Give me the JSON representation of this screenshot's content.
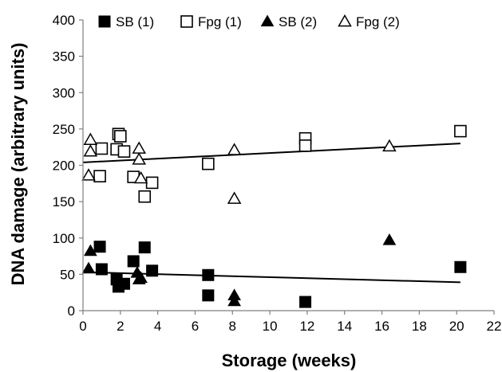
{
  "chart_data": {
    "type": "scatter",
    "title": "",
    "xlabel": "Storage (weeks)",
    "ylabel": "DNA damage (arbitrary units)",
    "xlim": [
      0,
      22
    ],
    "ylim": [
      0,
      400
    ],
    "xticks": [
      0,
      2,
      4,
      6,
      8,
      10,
      12,
      14,
      16,
      18,
      20,
      22
    ],
    "yticks": [
      0,
      50,
      100,
      150,
      200,
      250,
      300,
      350,
      400
    ],
    "grid": false,
    "legend_position": "top",
    "series": [
      {
        "name": "SB (1)",
        "marker": "square-filled",
        "color": "#000000",
        "points": [
          [
            0.9,
            88
          ],
          [
            1.0,
            57
          ],
          [
            1.8,
            43
          ],
          [
            1.9,
            33
          ],
          [
            2.2,
            37
          ],
          [
            2.7,
            68
          ],
          [
            3.3,
            87
          ],
          [
            3.7,
            55
          ],
          [
            6.7,
            49
          ],
          [
            6.7,
            21
          ],
          [
            11.9,
            12
          ],
          [
            20.2,
            60
          ]
        ]
      },
      {
        "name": "Fpg (1)",
        "marker": "square-open",
        "color": "#000000",
        "points": [
          [
            0.9,
            185
          ],
          [
            1.0,
            223
          ],
          [
            1.8,
            222
          ],
          [
            1.9,
            243
          ],
          [
            2.0,
            240
          ],
          [
            2.2,
            219
          ],
          [
            2.7,
            184
          ],
          [
            3.3,
            157
          ],
          [
            3.7,
            176
          ],
          [
            6.7,
            202
          ],
          [
            11.9,
            237
          ],
          [
            11.9,
            227
          ],
          [
            20.2,
            247
          ]
        ]
      },
      {
        "name": "SB (2)",
        "marker": "triangle-filled",
        "color": "#000000",
        "points": [
          [
            0.3,
            58
          ],
          [
            0.4,
            82
          ],
          [
            2.9,
            52
          ],
          [
            3.0,
            43
          ],
          [
            3.1,
            45
          ],
          [
            8.1,
            21
          ],
          [
            8.1,
            13
          ],
          [
            16.4,
            97
          ]
        ]
      },
      {
        "name": "Fpg (2)",
        "marker": "triangle-open",
        "color": "#000000",
        "points": [
          [
            0.3,
            186
          ],
          [
            0.4,
            219
          ],
          [
            0.4,
            235
          ],
          [
            3.0,
            223
          ],
          [
            3.0,
            208
          ],
          [
            3.1,
            182
          ],
          [
            8.1,
            221
          ],
          [
            8.1,
            154
          ],
          [
            16.4,
            226
          ]
        ]
      }
    ],
    "trendlines": [
      {
        "from": [
          0,
          204
        ],
        "to": [
          20.2,
          230
        ]
      },
      {
        "from": [
          0,
          53
        ],
        "to": [
          20.2,
          39
        ]
      }
    ]
  }
}
